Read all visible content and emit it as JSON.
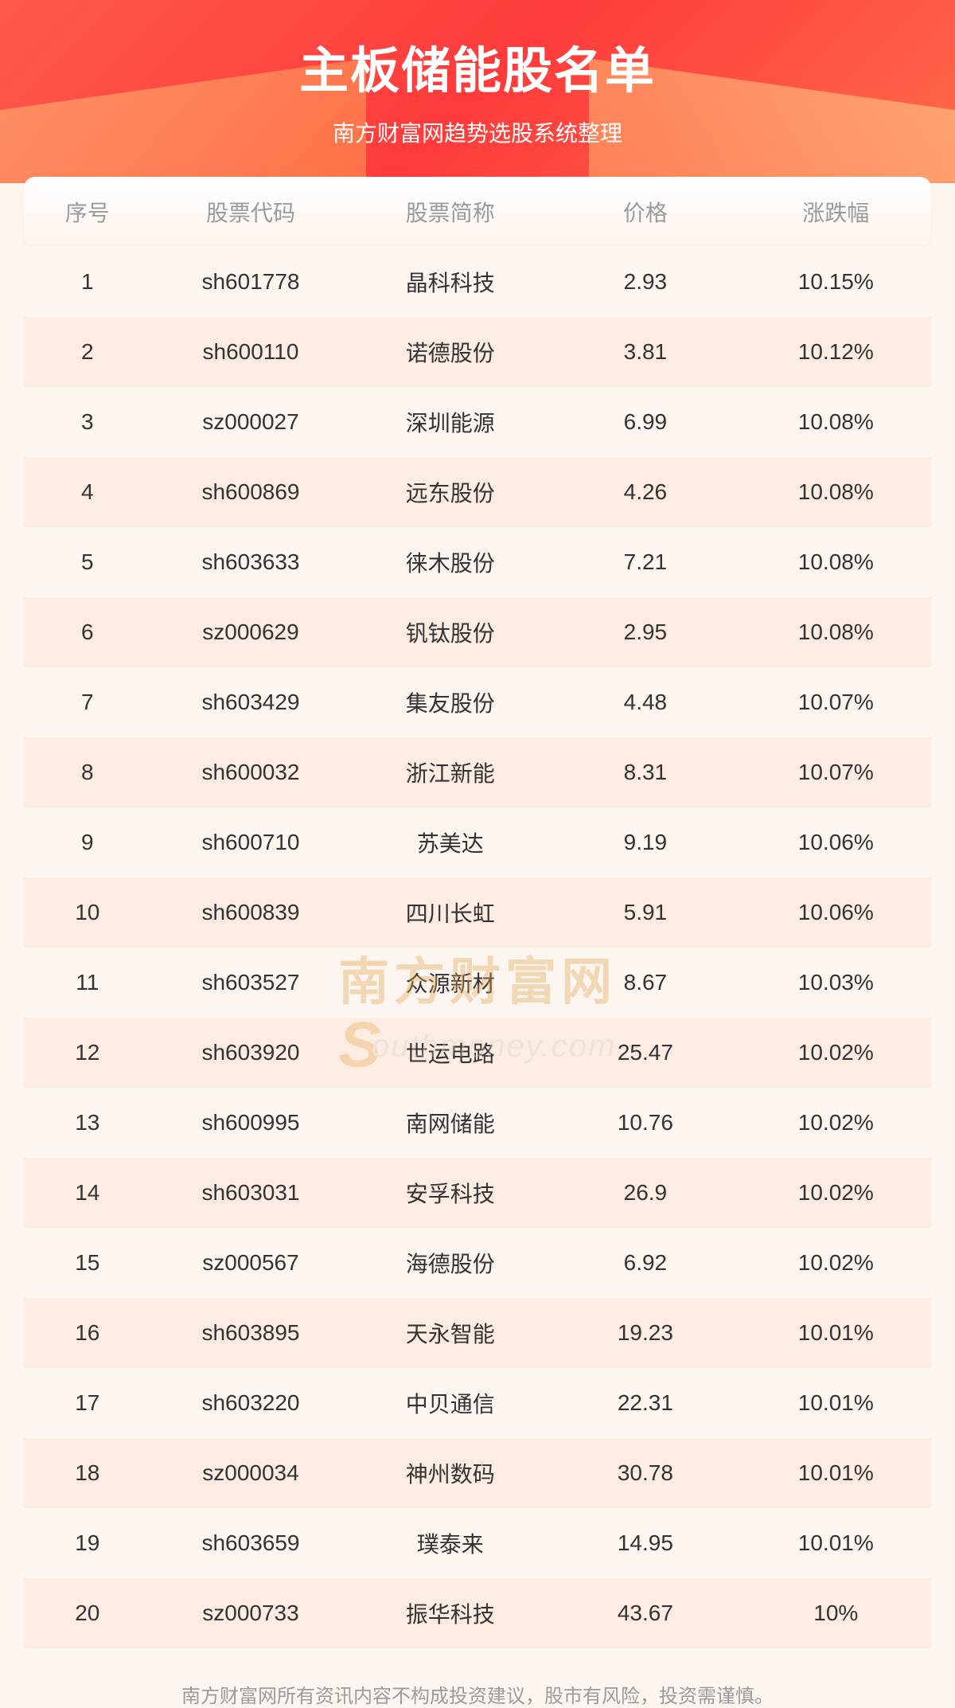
{
  "header": {
    "title": "主板储能股名单",
    "subtitle": "南方财富网趋势选股系统整理",
    "bg_gradient": [
      "#ff5a4a",
      "#ff3b3b",
      "#ff6b4a"
    ]
  },
  "watermark": {
    "line1": "南方财富网",
    "line2_prefix": "S",
    "line2_rest": "outhmoney.com",
    "color_top": "#e0a04a",
    "color_bottom": "#d8d4cf"
  },
  "table": {
    "type": "table",
    "columns": [
      "序号",
      "股票代码",
      "股票简称",
      "价格",
      "涨跌幅"
    ],
    "column_widths_pct": [
      14,
      22,
      22,
      21,
      21
    ],
    "header_bg": [
      "#ffffff",
      "#fdf3ec"
    ],
    "header_color": "#9b9b9b",
    "row_bg_odd": "#fdf5f0",
    "row_bg_even": "#fcece2",
    "cell_color": "#333333",
    "font_size": 28,
    "rows": [
      {
        "idx": "1",
        "code": "sh601778",
        "name": "晶科科技",
        "price": "2.93",
        "chg": "10.15%"
      },
      {
        "idx": "2",
        "code": "sh600110",
        "name": "诺德股份",
        "price": "3.81",
        "chg": "10.12%"
      },
      {
        "idx": "3",
        "code": "sz000027",
        "name": "深圳能源",
        "price": "6.99",
        "chg": "10.08%"
      },
      {
        "idx": "4",
        "code": "sh600869",
        "name": "远东股份",
        "price": "4.26",
        "chg": "10.08%"
      },
      {
        "idx": "5",
        "code": "sh603633",
        "name": "徕木股份",
        "price": "7.21",
        "chg": "10.08%"
      },
      {
        "idx": "6",
        "code": "sz000629",
        "name": "钒钛股份",
        "price": "2.95",
        "chg": "10.08%"
      },
      {
        "idx": "7",
        "code": "sh603429",
        "name": "集友股份",
        "price": "4.48",
        "chg": "10.07%"
      },
      {
        "idx": "8",
        "code": "sh600032",
        "name": "浙江新能",
        "price": "8.31",
        "chg": "10.07%"
      },
      {
        "idx": "9",
        "code": "sh600710",
        "name": "苏美达",
        "price": "9.19",
        "chg": "10.06%"
      },
      {
        "idx": "10",
        "code": "sh600839",
        "name": "四川长虹",
        "price": "5.91",
        "chg": "10.06%"
      },
      {
        "idx": "11",
        "code": "sh603527",
        "name": "众源新材",
        "price": "8.67",
        "chg": "10.03%"
      },
      {
        "idx": "12",
        "code": "sh603920",
        "name": "世运电路",
        "price": "25.47",
        "chg": "10.02%"
      },
      {
        "idx": "13",
        "code": "sh600995",
        "name": "南网储能",
        "price": "10.76",
        "chg": "10.02%"
      },
      {
        "idx": "14",
        "code": "sh603031",
        "name": "安孚科技",
        "price": "26.9",
        "chg": "10.02%"
      },
      {
        "idx": "15",
        "code": "sz000567",
        "name": "海德股份",
        "price": "6.92",
        "chg": "10.02%"
      },
      {
        "idx": "16",
        "code": "sh603895",
        "name": "天永智能",
        "price": "19.23",
        "chg": "10.01%"
      },
      {
        "idx": "17",
        "code": "sh603220",
        "name": "中贝通信",
        "price": "22.31",
        "chg": "10.01%"
      },
      {
        "idx": "18",
        "code": "sz000034",
        "name": "神州数码",
        "price": "30.78",
        "chg": "10.01%"
      },
      {
        "idx": "19",
        "code": "sh603659",
        "name": "璞泰来",
        "price": "14.95",
        "chg": "10.01%"
      },
      {
        "idx": "20",
        "code": "sz000733",
        "name": "振华科技",
        "price": "43.67",
        "chg": "10%"
      }
    ]
  },
  "footer": {
    "disclaimer": "南方财富网所有资讯内容不构成投资建议，股市有风险，投资需谨慎。",
    "color": "#9b9b9b"
  }
}
